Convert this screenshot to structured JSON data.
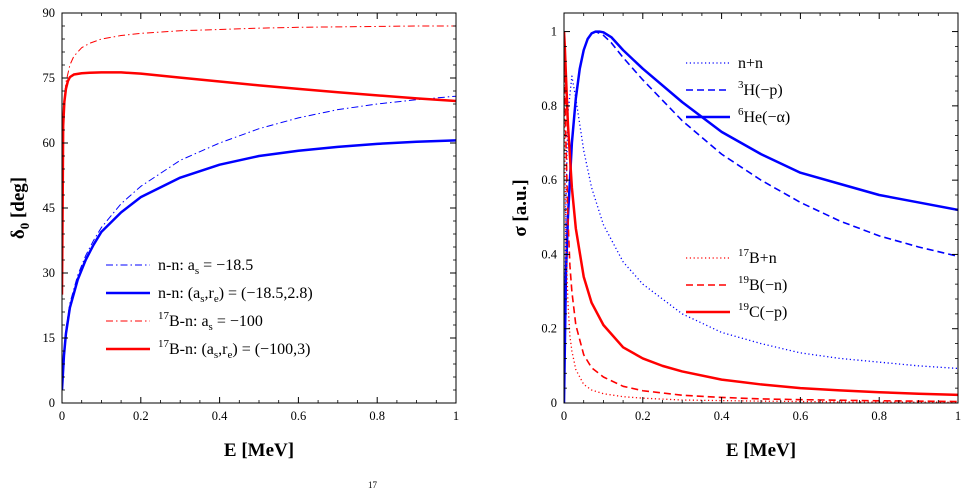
{
  "caption_fragment": "17",
  "chart_data": [
    {
      "type": "line",
      "xlabel": "E [MeV]",
      "ylabel": "δ0 [deg]",
      "xlim": [
        0,
        1
      ],
      "ylim": [
        0,
        90
      ],
      "x_ticks": [
        "0",
        "0.2",
        "0.4",
        "0.6",
        "0.8",
        "1"
      ],
      "y_ticks": [
        "0",
        "15",
        "30",
        "45",
        "60",
        "75",
        "90"
      ],
      "legend_position": "bottom-right",
      "series": [
        {
          "name": "n-n: a_s = −18.5",
          "legend": {
            "base": "n-n: a",
            "sub": "s",
            "rest": " = −18.5"
          },
          "color": "#0000ff",
          "style": "dashdot",
          "width": 1,
          "x": [
            0,
            0.005,
            0.01,
            0.02,
            0.04,
            0.06,
            0.08,
            0.1,
            0.15,
            0.2,
            0.3,
            0.4,
            0.5,
            0.6,
            0.7,
            0.8,
            0.9,
            1.0
          ],
          "y": [
            4,
            12,
            17,
            23,
            29.5,
            34,
            37.5,
            40.5,
            46,
            50,
            56,
            60,
            63.3,
            65.8,
            67.7,
            69,
            70,
            70.8
          ]
        },
        {
          "name": "n-n: (a_s,r_e) = (−18.5,2.8)",
          "legend": {
            "base": "n-n: (a",
            "sub": "s",
            "mid": ",r",
            "sub2": "e",
            "rest": ") = (−18.5,2.8)"
          },
          "color": "#0000ff",
          "style": "solid",
          "width": 2.5,
          "x": [
            0,
            0.005,
            0.01,
            0.02,
            0.04,
            0.06,
            0.08,
            0.1,
            0.15,
            0.2,
            0.3,
            0.4,
            0.5,
            0.6,
            0.7,
            0.8,
            0.9,
            1.0
          ],
          "y": [
            3,
            11,
            16,
            22,
            28.5,
            33,
            36.5,
            39.5,
            44,
            47.5,
            52,
            55,
            57,
            58.2,
            59.1,
            59.8,
            60.3,
            60.6
          ]
        },
        {
          "name": "17B-n: a_s = −100",
          "legend": {
            "sup": "17",
            "base": "B-n: a",
            "sub": "s",
            "rest": " = −100"
          },
          "color": "#ff0000",
          "style": "dashdot",
          "width": 1,
          "x": [
            0,
            0.003,
            0.006,
            0.01,
            0.02,
            0.03,
            0.05,
            0.07,
            0.1,
            0.15,
            0.2,
            0.3,
            0.4,
            0.5,
            0.6,
            0.7,
            0.8,
            0.9,
            1.0
          ],
          "y": [
            25,
            64,
            70,
            74,
            78,
            80,
            82,
            83,
            84,
            84.8,
            85.3,
            85.9,
            86.2,
            86.5,
            86.7,
            86.8,
            86.9,
            87,
            87
          ]
        },
        {
          "name": "17B-n: (a_s,r_e) = (−100,3)",
          "legend": {
            "sup": "17",
            "base": "B-n: (a",
            "sub": "s",
            "mid": ",r",
            "sub2": "e",
            "rest": ") = (−100,3)"
          },
          "color": "#ff0000",
          "style": "solid",
          "width": 2.5,
          "x": [
            0,
            0.003,
            0.006,
            0.01,
            0.015,
            0.02,
            0.03,
            0.05,
            0.07,
            0.1,
            0.15,
            0.2,
            0.3,
            0.4,
            0.5,
            0.6,
            0.7,
            0.8,
            0.9,
            1.0
          ],
          "y": [
            25,
            64,
            69.5,
            72.5,
            74.3,
            75.2,
            75.8,
            76.1,
            76.2,
            76.3,
            76.3,
            76,
            75.1,
            74.2,
            73.3,
            72.5,
            71.7,
            71,
            70.3,
            69.7
          ]
        }
      ]
    },
    {
      "type": "line",
      "xlabel": "E [MeV]",
      "ylabel": "σ [a.u.]",
      "xlim": [
        0,
        1
      ],
      "ylim": [
        0,
        1.05
      ],
      "x_ticks": [
        "0",
        "0.2",
        "0.4",
        "0.6",
        "0.8",
        "1"
      ],
      "y_ticks": [
        "0",
        "0.2",
        "0.4",
        "0.6",
        "0.8",
        "1"
      ],
      "legend_position": "top-right and middle-right",
      "series": [
        {
          "name": "n+n",
          "legend": {
            "base": "n+n"
          },
          "color": "#0000ff",
          "style": "dotted",
          "width": 1.3,
          "x": [
            0,
            0.005,
            0.01,
            0.02,
            0.03,
            0.05,
            0.07,
            0.1,
            0.15,
            0.2,
            0.3,
            0.4,
            0.5,
            0.6,
            0.7,
            0.8,
            0.9,
            1.0
          ],
          "y": [
            0,
            0.55,
            0.78,
            0.88,
            0.82,
            0.68,
            0.58,
            0.48,
            0.38,
            0.32,
            0.24,
            0.19,
            0.16,
            0.135,
            0.12,
            0.11,
            0.1,
            0.093
          ]
        },
        {
          "name": "3H(−p)",
          "legend": {
            "sup": "3",
            "base": "H(−p)"
          },
          "color": "#0000ff",
          "style": "dashed",
          "width": 1.6,
          "x": [
            0,
            0.005,
            0.01,
            0.02,
            0.03,
            0.04,
            0.05,
            0.06,
            0.07,
            0.08,
            0.09,
            0.1,
            0.12,
            0.15,
            0.2,
            0.3,
            0.4,
            0.5,
            0.6,
            0.7,
            0.8,
            0.9,
            1.0
          ],
          "y": [
            0,
            0.35,
            0.5,
            0.7,
            0.82,
            0.9,
            0.95,
            0.98,
            0.995,
            1.0,
            0.995,
            0.99,
            0.97,
            0.93,
            0.87,
            0.76,
            0.67,
            0.6,
            0.54,
            0.49,
            0.45,
            0.42,
            0.395
          ]
        },
        {
          "name": "6He(−α)",
          "legend": {
            "sup": "6",
            "base": "He(−α)"
          },
          "color": "#0000ff",
          "style": "solid",
          "width": 2.5,
          "x": [
            0,
            0.005,
            0.01,
            0.02,
            0.03,
            0.04,
            0.05,
            0.06,
            0.07,
            0.08,
            0.09,
            0.1,
            0.12,
            0.15,
            0.2,
            0.3,
            0.4,
            0.5,
            0.6,
            0.7,
            0.8,
            0.9,
            1.0
          ],
          "y": [
            0,
            0.35,
            0.5,
            0.7,
            0.82,
            0.9,
            0.95,
            0.98,
            0.995,
            1.0,
            1.0,
            0.998,
            0.985,
            0.95,
            0.9,
            0.81,
            0.73,
            0.67,
            0.62,
            0.59,
            0.56,
            0.54,
            0.52
          ]
        },
        {
          "name": "17B+n",
          "legend": {
            "sup": "17",
            "base": "B+n"
          },
          "color": "#ff0000",
          "style": "dotted",
          "width": 1.3,
          "x": [
            0,
            0.002,
            0.004,
            0.006,
            0.01,
            0.015,
            0.02,
            0.03,
            0.05,
            0.07,
            0.1,
            0.15,
            0.2,
            0.3,
            0.5,
            0.7,
            1.0
          ],
          "y": [
            0.98,
            0.7,
            0.52,
            0.4,
            0.27,
            0.18,
            0.14,
            0.09,
            0.05,
            0.035,
            0.025,
            0.017,
            0.013,
            0.008,
            0.005,
            0.003,
            0.002
          ]
        },
        {
          "name": "19B(−n)",
          "legend": {
            "sup": "19",
            "base": "B(−n)"
          },
          "color": "#ff0000",
          "style": "dashed",
          "width": 1.6,
          "x": [
            0,
            0.002,
            0.005,
            0.01,
            0.015,
            0.02,
            0.03,
            0.05,
            0.07,
            0.1,
            0.15,
            0.2,
            0.3,
            0.4,
            0.5,
            0.6,
            0.8,
            1.0
          ],
          "y": [
            1.0,
            0.88,
            0.7,
            0.5,
            0.37,
            0.3,
            0.21,
            0.13,
            0.095,
            0.07,
            0.045,
            0.033,
            0.021,
            0.015,
            0.011,
            0.009,
            0.006,
            0.004
          ]
        },
        {
          "name": "19C(−p)",
          "legend": {
            "sup": "19",
            "base": "C(−p)"
          },
          "color": "#ff0000",
          "style": "solid",
          "width": 2.5,
          "x": [
            0,
            0.002,
            0.005,
            0.01,
            0.02,
            0.03,
            0.05,
            0.07,
            0.1,
            0.15,
            0.2,
            0.25,
            0.3,
            0.4,
            0.5,
            0.6,
            0.7,
            0.8,
            0.9,
            1.0
          ],
          "y": [
            1.0,
            0.96,
            0.88,
            0.75,
            0.58,
            0.47,
            0.34,
            0.27,
            0.21,
            0.15,
            0.12,
            0.1,
            0.085,
            0.063,
            0.05,
            0.04,
            0.034,
            0.029,
            0.025,
            0.022
          ]
        }
      ]
    }
  ]
}
